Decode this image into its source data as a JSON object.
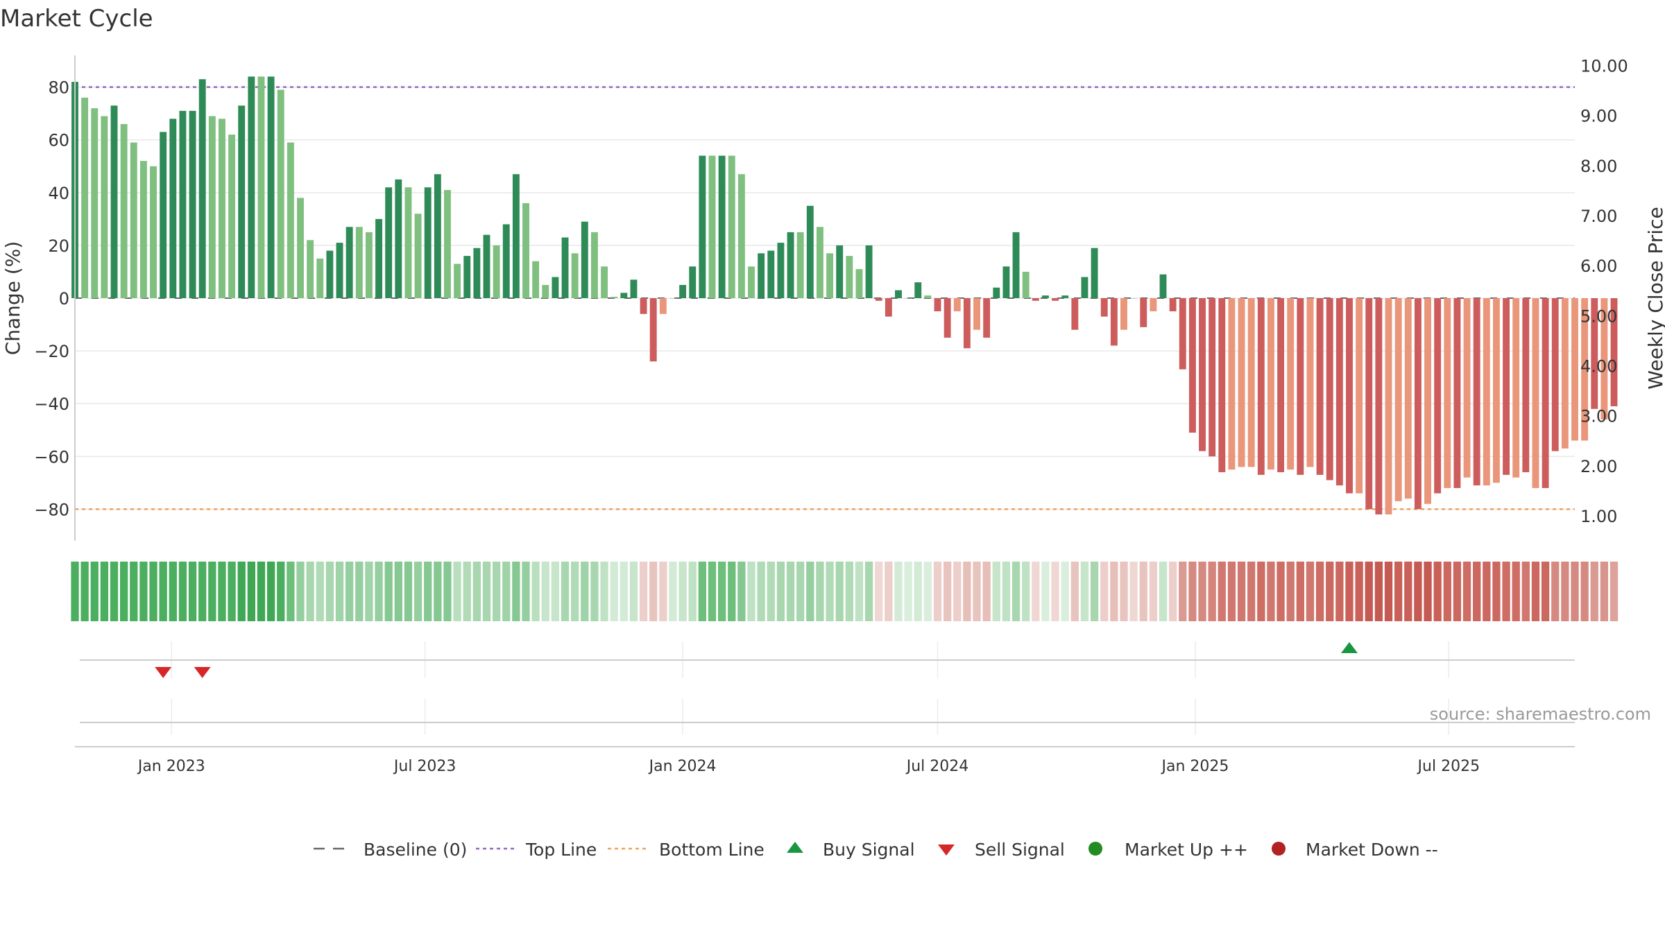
{
  "chart_data": {
    "type": "bar",
    "title": "Market Cycle",
    "ylabel_left": "Change (%)",
    "ylabel_right": "Weekly Close Price",
    "ylim_left": [
      -92,
      92
    ],
    "ylim_right": [
      0.5,
      10.2
    ],
    "yticks_left": [
      80,
      60,
      40,
      20,
      0,
      -20,
      -40,
      -60,
      -80
    ],
    "ytick_labels_left": [
      "80",
      "60",
      "40",
      "20",
      "0",
      "−20",
      "−40",
      "−60",
      "−80"
    ],
    "yticks_right": [
      10,
      9,
      8,
      7,
      6,
      5,
      4,
      3,
      2,
      1
    ],
    "ytick_labels_right": [
      "10.00",
      "9.00",
      "8.00",
      "7.00",
      "6.00",
      "5.00",
      "4.00",
      "3.00",
      "2.00",
      "1.00"
    ],
    "x_start": "2022-10-24",
    "x_end": "2025-09-29",
    "x_ticks": [
      {
        "date": "2023-01-01",
        "label": "Jan 2023"
      },
      {
        "date": "2023-07-01",
        "label": "Jul 2023"
      },
      {
        "date": "2024-01-01",
        "label": "Jan 2024"
      },
      {
        "date": "2024-07-01",
        "label": "Jul 2024"
      },
      {
        "date": "2025-01-01",
        "label": "Jan 2025"
      },
      {
        "date": "2025-07-01",
        "label": "Jul 2025"
      }
    ],
    "first_week": "2022-10-24",
    "week_step_days": 7,
    "values": [
      82,
      76,
      72,
      69,
      73,
      66,
      59,
      52,
      50,
      63,
      68,
      71,
      71,
      83,
      69,
      68,
      62,
      73,
      84,
      84,
      84,
      79,
      59,
      38,
      22,
      15,
      18,
      21,
      27,
      27,
      25,
      30,
      42,
      45,
      42,
      32,
      42,
      47,
      41,
      13,
      16,
      19,
      24,
      20,
      28,
      47,
      36,
      14,
      5,
      8,
      23,
      17,
      29,
      25,
      12,
      0.5,
      2,
      7,
      -6,
      -24,
      -6,
      0,
      5,
      12,
      54,
      54,
      54,
      54,
      47,
      12,
      17,
      18,
      21,
      25,
      25,
      35,
      27,
      17,
      20,
      16,
      11,
      20,
      -1,
      -7,
      3,
      0,
      6,
      1,
      -5,
      -15,
      -5,
      -19,
      -12,
      -15,
      4,
      12,
      25,
      10,
      -1,
      1,
      -1,
      1,
      -12,
      8,
      19,
      -7,
      -18,
      -12,
      0,
      -11,
      -5,
      9,
      -5,
      -27,
      -51,
      -58,
      -60,
      -66,
      -65,
      -64,
      -64,
      -67,
      -65,
      -66,
      -65,
      -67,
      -64,
      -67,
      -69,
      -71,
      -74,
      -74,
      -80,
      -82,
      -82,
      -77,
      -76,
      -80,
      -78,
      -74,
      -72,
      -72,
      -68,
      -71,
      -71,
      -70,
      -67,
      -68,
      -66,
      -72,
      -72,
      -58,
      -57,
      -54,
      -54,
      -42,
      -46,
      -41
    ],
    "bar_colors": [
      "#2e8b57",
      "#7fbf7f",
      "#7fbf7f",
      "#7fbf7f",
      "#2e8b57",
      "#7fbf7f",
      "#7fbf7f",
      "#7fbf7f",
      "#7fbf7f",
      "#2e8b57",
      "#2e8b57",
      "#2e8b57",
      "#2e8b57",
      "#2e8b57",
      "#7fbf7f",
      "#7fbf7f",
      "#7fbf7f",
      "#2e8b57",
      "#2e8b57",
      "#7fbf7f",
      "#2e8b57",
      "#7fbf7f",
      "#7fbf7f",
      "#7fbf7f",
      "#7fbf7f",
      "#7fbf7f",
      "#2e8b57",
      "#2e8b57",
      "#2e8b57",
      "#7fbf7f",
      "#7fbf7f",
      "#2e8b57",
      "#2e8b57",
      "#2e8b57",
      "#7fbf7f",
      "#7fbf7f",
      "#2e8b57",
      "#2e8b57",
      "#7fbf7f",
      "#7fbf7f",
      "#2e8b57",
      "#2e8b57",
      "#2e8b57",
      "#7fbf7f",
      "#2e8b57",
      "#2e8b57",
      "#7fbf7f",
      "#7fbf7f",
      "#7fbf7f",
      "#2e8b57",
      "#2e8b57",
      "#7fbf7f",
      "#2e8b57",
      "#7fbf7f",
      "#7fbf7f",
      "#7fbf7f",
      "#2e8b57",
      "#2e8b57",
      "#cd5c5c",
      "#cd5c5c",
      "#e9967a",
      "#7fbf7f",
      "#2e8b57",
      "#2e8b57",
      "#2e8b57",
      "#7fbf7f",
      "#2e8b57",
      "#7fbf7f",
      "#7fbf7f",
      "#7fbf7f",
      "#2e8b57",
      "#2e8b57",
      "#2e8b57",
      "#2e8b57",
      "#7fbf7f",
      "#2e8b57",
      "#7fbf7f",
      "#7fbf7f",
      "#2e8b57",
      "#7fbf7f",
      "#7fbf7f",
      "#2e8b57",
      "#cd5c5c",
      "#cd5c5c",
      "#2e8b57",
      "#7fbf7f",
      "#2e8b57",
      "#7fbf7f",
      "#cd5c5c",
      "#cd5c5c",
      "#e9967a",
      "#cd5c5c",
      "#e9967a",
      "#cd5c5c",
      "#2e8b57",
      "#2e8b57",
      "#2e8b57",
      "#7fbf7f",
      "#cd5c5c",
      "#2e8b57",
      "#cd5c5c",
      "#2e8b57",
      "#cd5c5c",
      "#2e8b57",
      "#2e8b57",
      "#cd5c5c",
      "#cd5c5c",
      "#e9967a",
      "#7fbf7f",
      "#cd5c5c",
      "#e9967a",
      "#2e8b57",
      "#cd5c5c",
      "#cd5c5c",
      "#cd5c5c",
      "#cd5c5c",
      "#cd5c5c",
      "#cd5c5c",
      "#e9967a",
      "#e9967a",
      "#e9967a",
      "#cd5c5c",
      "#e9967a",
      "#cd5c5c",
      "#e9967a",
      "#cd5c5c",
      "#e9967a",
      "#cd5c5c",
      "#cd5c5c",
      "#cd5c5c",
      "#cd5c5c",
      "#e9967a",
      "#cd5c5c",
      "#cd5c5c",
      "#e9967a",
      "#e9967a",
      "#e9967a",
      "#cd5c5c",
      "#e9967a",
      "#cd5c5c",
      "#e9967a",
      "#cd5c5c",
      "#e9967a",
      "#cd5c5c",
      "#e9967a",
      "#e9967a",
      "#cd5c5c",
      "#e9967a",
      "#cd5c5c",
      "#e9967a",
      "#cd5c5c",
      "#cd5c5c",
      "#e9967a",
      "#e9967a",
      "#e9967a",
      "#cd5c5c",
      "#e9967a",
      "#cd5c5c",
      "#e9967a"
    ],
    "heat_colors": [
      "#4caf60",
      "#4caf60",
      "#4caf60",
      "#4caf60",
      "#4caf60",
      "#4caf60",
      "#4caf60",
      "#4caf60",
      "#4caf60",
      "#4caf60",
      "#4caf60",
      "#4caf60",
      "#4caf60",
      "#4caf60",
      "#4caf60",
      "#4caf60",
      "#4caf60",
      "#40a755",
      "#40a755",
      "#40a755",
      "#40a755",
      "#4caf60",
      "#6dbf7b",
      "#95cf9f",
      "#a8d7af",
      "#b0dbb6",
      "#a8d7af",
      "#9fd3a8",
      "#95cf9f",
      "#95cf9f",
      "#9fd3a8",
      "#95cf9f",
      "#86c892",
      "#86c892",
      "#86c892",
      "#95cf9f",
      "#86c892",
      "#86c892",
      "#86c892",
      "#b9dfbe",
      "#b0dbb6",
      "#a8d7af",
      "#a8d7af",
      "#a8d7af",
      "#9fd3a8",
      "#86c892",
      "#95cf9f",
      "#b9dfbe",
      "#c6e5ca",
      "#c6e5ca",
      "#a8d7af",
      "#b0dbb6",
      "#9fd3a8",
      "#a8d7af",
      "#bfe2c4",
      "#d3ebd6",
      "#d3ebd6",
      "#c6e5ca",
      "#eccfcb",
      "#e8c4bf",
      "#eccfcb",
      "#d3ebd6",
      "#c6e5ca",
      "#bfe2c4",
      "#6dbf7b",
      "#6dbf7b",
      "#6dbf7b",
      "#6dbf7b",
      "#86c892",
      "#bfe2c4",
      "#b0dbb6",
      "#b0dbb6",
      "#a8d7af",
      "#a8d7af",
      "#a8d7af",
      "#95cf9f",
      "#a8d7af",
      "#b0dbb6",
      "#a8d7af",
      "#b0dbb6",
      "#bfe2c4",
      "#a8d7af",
      "#efd7d4",
      "#eccfcb",
      "#d3ebd6",
      "#d9eedc",
      "#d3ebd6",
      "#d9eedc",
      "#eccfcb",
      "#e8c4bf",
      "#eccfcb",
      "#e6bfb9",
      "#e8c4bf",
      "#e6bfb9",
      "#c6e5ca",
      "#bfe2c4",
      "#a8d7af",
      "#bfe2c4",
      "#efd7d4",
      "#d9eedc",
      "#efd7d4",
      "#d9eedc",
      "#e8c4bf",
      "#c6e5ca",
      "#a8d7af",
      "#eccfcb",
      "#e6bfb9",
      "#e8c4bf",
      "#efd7d4",
      "#e8c4bf",
      "#eccfcb",
      "#c6e5ca",
      "#eccfcb",
      "#da9a92",
      "#d58a81",
      "#d58a81",
      "#d4857c",
      "#d0786f",
      "#d0786f",
      "#d0786f",
      "#d0786f",
      "#cd6d64",
      "#d0786f",
      "#cd6d64",
      "#d0786f",
      "#cd6d64",
      "#d0786f",
      "#cd6d64",
      "#cb6860",
      "#cb6860",
      "#c96159",
      "#c96159",
      "#c55a52",
      "#c55a52",
      "#c55a52",
      "#c96159",
      "#c96159",
      "#c55a52",
      "#c55a52",
      "#c96159",
      "#cb6860",
      "#cb6860",
      "#cd6d64",
      "#cb6860",
      "#cb6860",
      "#cb6860",
      "#cd6d64",
      "#cd6d64",
      "#d0786f",
      "#cb6860",
      "#cb6860",
      "#d58a81",
      "#d58a81",
      "#d58a81",
      "#d58a81",
      "#da9a92",
      "#d8958d",
      "#dda29b"
    ],
    "top_line": 80,
    "bottom_line": -80,
    "baseline": 0,
    "sell_signals": [
      "2022-12-26",
      "2023-01-23"
    ],
    "buy_signals": [
      "2025-04-21"
    ],
    "source": "source: sharemaestro.com",
    "legend": [
      {
        "key": "baseline",
        "label": "Baseline (0)",
        "color": "#666666"
      },
      {
        "key": "top",
        "label": "Top Line",
        "color": "#9467bd"
      },
      {
        "key": "bottom",
        "label": "Bottom Line",
        "color": "#f0a05a"
      },
      {
        "key": "buy",
        "label": "Buy Signal",
        "color": "#1a9641"
      },
      {
        "key": "sell",
        "label": "Sell Signal",
        "color": "#d62728"
      },
      {
        "key": "mup",
        "label": "Market Up ++",
        "color": "#228b22"
      },
      {
        "key": "mdown",
        "label": "Market Down --",
        "color": "#b22222"
      }
    ]
  }
}
